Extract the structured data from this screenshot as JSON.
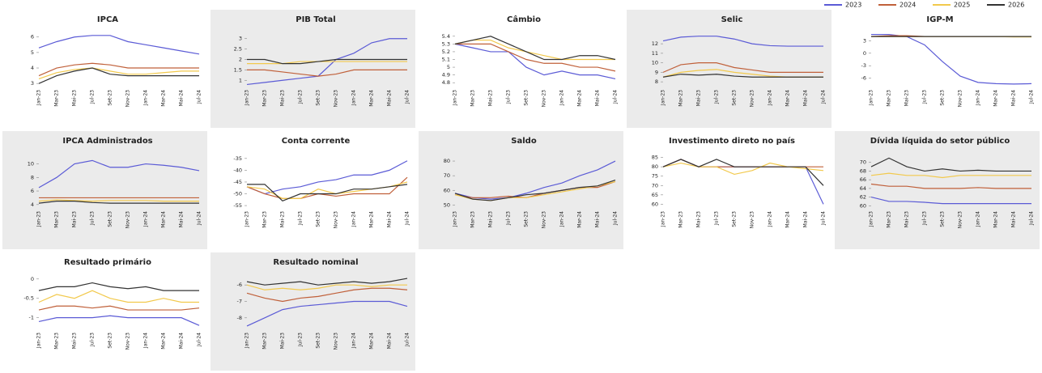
{
  "legend": [
    {
      "name": "2023",
      "color": "#5b5bd6"
    },
    {
      "name": "2024",
      "color": "#c0603a"
    },
    {
      "name": "2025",
      "color": "#f2c94c"
    },
    {
      "name": "2026",
      "color": "#333333"
    }
  ],
  "chart_data": [
    {
      "type": "line",
      "title": "IPCA",
      "categories": [
        "Jan-23",
        "Mar-23",
        "Mai-23",
        "Jul-23",
        "Set-23",
        "Nov-23",
        "Jan-24",
        "Mar-24",
        "Mai-24",
        "Jul-24"
      ],
      "ylim": [
        2.8,
        6.3
      ],
      "yticks": [
        3,
        4,
        5,
        6
      ],
      "series": [
        {
          "values": [
            5.3,
            5.7,
            6.0,
            6.1,
            6.1,
            5.7,
            5.5,
            5.3,
            5.1,
            4.9
          ]
        },
        {
          "values": [
            3.5,
            4.0,
            4.2,
            4.3,
            4.2,
            4.0,
            4.0,
            4.0,
            4.0,
            4.0
          ]
        },
        {
          "values": [
            3.3,
            3.7,
            3.9,
            4.0,
            3.8,
            3.6,
            3.6,
            3.7,
            3.8,
            3.8
          ]
        },
        {
          "values": [
            3.0,
            3.5,
            3.8,
            4.0,
            3.6,
            3.5,
            3.5,
            3.5,
            3.5,
            3.5
          ]
        }
      ]
    },
    {
      "type": "line",
      "title": "PIB Total",
      "categories": [
        "Jan-23",
        "Mar-23",
        "Mai-23",
        "Jul-23",
        "Set-23",
        "Nov-23",
        "Jan-24",
        "Mar-24",
        "Mai-24",
        "Jul-24"
      ],
      "ylim": [
        0.7,
        3.3
      ],
      "yticks": [
        1,
        1.5,
        2,
        2.5,
        3
      ],
      "series": [
        {
          "values": [
            0.8,
            0.9,
            1.0,
            1.1,
            1.2,
            2.0,
            2.3,
            2.8,
            3.0,
            3.0
          ]
        },
        {
          "values": [
            1.5,
            1.5,
            1.4,
            1.3,
            1.2,
            1.3,
            1.5,
            1.5,
            1.5,
            1.5
          ]
        },
        {
          "values": [
            1.8,
            1.8,
            1.8,
            1.9,
            1.9,
            1.9,
            1.9,
            1.9,
            1.9,
            1.9
          ]
        },
        {
          "values": [
            2.0,
            2.0,
            1.8,
            1.8,
            1.9,
            2.0,
            2.0,
            2.0,
            2.0,
            2.0
          ]
        }
      ]
    },
    {
      "type": "line",
      "title": "Câmbio",
      "categories": [
        "Jan-23",
        "Mar-23",
        "Mai-23",
        "Jul-23",
        "Set-23",
        "Nov-23",
        "Jan-24",
        "Mar-24",
        "Mai-24",
        "Jul-24"
      ],
      "ylim": [
        4.75,
        5.45
      ],
      "yticks": [
        4.8,
        4.9,
        5,
        5.1,
        5.2,
        5.3,
        5.4
      ],
      "series": [
        {
          "values": [
            5.3,
            5.25,
            5.2,
            5.2,
            5.0,
            4.9,
            4.95,
            4.9,
            4.9,
            4.85
          ]
        },
        {
          "values": [
            5.3,
            5.3,
            5.3,
            5.2,
            5.1,
            5.05,
            5.05,
            5.0,
            5.0,
            4.95
          ]
        },
        {
          "values": [
            5.3,
            5.35,
            5.35,
            5.25,
            5.2,
            5.15,
            5.1,
            5.1,
            5.1,
            5.1
          ]
        },
        {
          "values": [
            5.3,
            5.35,
            5.4,
            5.3,
            5.2,
            5.1,
            5.1,
            5.15,
            5.15,
            5.1
          ]
        }
      ]
    },
    {
      "type": "line",
      "title": "Selic",
      "categories": [
        "Jan-23",
        "Mar-23",
        "Mai-23",
        "Jul-23",
        "Set-23",
        "Nov-23",
        "Jan-24",
        "Mar-24",
        "Mai-24",
        "Jul-24"
      ],
      "ylim": [
        7.5,
        13.2
      ],
      "yticks": [
        8,
        9,
        10,
        11,
        12
      ],
      "series": [
        {
          "values": [
            12.3,
            12.7,
            12.8,
            12.8,
            12.5,
            12.0,
            11.8,
            11.75,
            11.75,
            11.75
          ]
        },
        {
          "values": [
            9,
            9.8,
            10,
            10,
            9.5,
            9.25,
            9.0,
            9.0,
            9.0,
            9.0
          ]
        },
        {
          "values": [
            8.5,
            9.0,
            9.2,
            9.3,
            9.0,
            8.8,
            8.6,
            8.5,
            8.5,
            8.5
          ]
        },
        {
          "values": [
            8.5,
            8.8,
            8.7,
            8.8,
            8.6,
            8.5,
            8.5,
            8.5,
            8.5,
            8.5
          ]
        }
      ]
    },
    {
      "type": "line",
      "title": "IGP-M",
      "categories": [
        "Jan-23",
        "Mar-23",
        "Mai-23",
        "Jul-23",
        "Set-23",
        "Nov-23",
        "Jan-24",
        "Mar-24",
        "Mai-24",
        "Jul-24"
      ],
      "ylim": [
        -8,
        5
      ],
      "yticks": [
        -6,
        -3,
        0,
        3
      ],
      "series": [
        {
          "values": [
            4.5,
            4.5,
            4.0,
            2.0,
            -2.0,
            -5.5,
            -7,
            -7.3,
            -7.4,
            -7.3
          ]
        },
        {
          "values": [
            4.0,
            4.2,
            4.2,
            4.0,
            4.0,
            4.0,
            4.0,
            4.0,
            4.0,
            4.0
          ]
        },
        {
          "values": [
            4.0,
            4.0,
            4.0,
            4.0,
            4.0,
            4.0,
            4.0,
            4.0,
            3.9,
            3.9
          ]
        },
        {
          "values": [
            4.0,
            4.0,
            4.0,
            4.0,
            4.0,
            4.0,
            4.0,
            4.0,
            4.0,
            4.0
          ]
        }
      ]
    },
    {
      "type": "line",
      "title": "IPCA Administrados",
      "categories": [
        "Jan-23",
        "Mar-23",
        "Mai-23",
        "Jul-23",
        "Set-23",
        "Nov-23",
        "Jan-24",
        "Mar-24",
        "Mai-24",
        "Jul-24"
      ],
      "ylim": [
        3.5,
        11.5
      ],
      "yticks": [
        4,
        6,
        8,
        10
      ],
      "series": [
        {
          "values": [
            6.5,
            8.0,
            10.0,
            10.5,
            9.5,
            9.5,
            10.0,
            9.8,
            9.5,
            9.0
          ]
        },
        {
          "values": [
            5.0,
            5.0,
            5.0,
            5.0,
            5.0,
            5.0,
            5.0,
            5.0,
            5.0,
            5.0
          ]
        },
        {
          "values": [
            4.5,
            4.7,
            4.6,
            4.5,
            4.6,
            4.6,
            4.6,
            4.5,
            4.5,
            4.5
          ]
        },
        {
          "values": [
            4.2,
            4.5,
            4.5,
            4.3,
            4.2,
            4.2,
            4.2,
            4.2,
            4.2,
            4.2
          ]
        }
      ]
    },
    {
      "type": "line",
      "title": "Conta corrente",
      "categories": [
        "Jan-23",
        "Mar-23",
        "Mai-23",
        "Jul-23",
        "Set-23",
        "Nov-23",
        "Jan-24",
        "Mar-24",
        "Mai-24",
        "Jul-24"
      ],
      "ylim": [
        -56,
        -33
      ],
      "yticks": [
        -55,
        -50,
        -45,
        -40,
        -35
      ],
      "series": [
        {
          "values": [
            -47,
            -50,
            -48,
            -47,
            -45,
            -44,
            -42,
            -42,
            -40,
            -36
          ]
        },
        {
          "values": [
            -47,
            -50,
            -52,
            -52,
            -50,
            -51,
            -50,
            -50,
            -50,
            -43
          ]
        },
        {
          "values": [
            -47,
            -48,
            -52,
            -52,
            -48,
            -50,
            -49,
            -48,
            -47,
            -45
          ]
        },
        {
          "values": [
            -46,
            -46,
            -53,
            -50,
            -50,
            -50,
            -48,
            -48,
            -47,
            -46
          ]
        }
      ]
    },
    {
      "type": "line",
      "title": "Saldo",
      "categories": [
        "Jan-23",
        "Mar-23",
        "Mai-23",
        "Jul-23",
        "Set-23",
        "Nov-23",
        "Jan-24",
        "Mar-24",
        "Mai-24",
        "Jul-24"
      ],
      "ylim": [
        48,
        85
      ],
      "yticks": [
        50,
        60,
        70,
        80
      ],
      "series": [
        {
          "values": [
            58,
            55,
            54,
            55,
            58,
            62,
            65,
            70,
            74,
            80
          ]
        },
        {
          "values": [
            57,
            55,
            55,
            56,
            55,
            58,
            60,
            62,
            62,
            66
          ]
        },
        {
          "values": [
            57,
            54,
            53,
            55,
            55,
            57,
            59,
            61,
            63,
            66
          ]
        },
        {
          "values": [
            58,
            54,
            53,
            55,
            57,
            58,
            60,
            62,
            63,
            67
          ]
        }
      ]
    },
    {
      "type": "line",
      "title": "Investimento direto no país",
      "categories": [
        "Jan-23",
        "Mar-23",
        "Mai-23",
        "Jul-23",
        "Set-23",
        "Nov-23",
        "Jan-24",
        "Mar-24",
        "Mai-24",
        "Jul-24"
      ],
      "ylim": [
        58,
        87
      ],
      "yticks": [
        60,
        65,
        70,
        75,
        80,
        85
      ],
      "series": [
        {
          "values": [
            80,
            84,
            80,
            80,
            80,
            80,
            80,
            80,
            80,
            60
          ]
        },
        {
          "values": [
            80,
            84,
            80,
            80,
            80,
            80,
            80,
            80,
            80,
            80
          ]
        },
        {
          "values": [
            80,
            82,
            80,
            80,
            76,
            78,
            82,
            80,
            79,
            78
          ]
        },
        {
          "values": [
            80,
            84,
            80,
            84,
            80,
            80,
            80,
            80,
            80,
            70
          ]
        }
      ]
    },
    {
      "type": "line",
      "title": "Dívida líquida do setor público",
      "categories": [
        "Jan-23",
        "Mar-23",
        "Mai-23",
        "Jul-23",
        "Set-23",
        "Nov-23",
        "Jan-24",
        "Mar-24",
        "Mai-24",
        "Jul-24"
      ],
      "ylim": [
        59.5,
        72
      ],
      "yticks": [
        60,
        62,
        64,
        66,
        68,
        70
      ],
      "series": [
        {
          "values": [
            62,
            61,
            61,
            60.8,
            60.5,
            60.5,
            60.5,
            60.5,
            60.5,
            60.5
          ]
        },
        {
          "values": [
            65,
            64.5,
            64.5,
            64,
            64,
            64,
            64.2,
            64,
            64,
            64
          ]
        },
        {
          "values": [
            67,
            67.5,
            67,
            67,
            66.5,
            67,
            67,
            67,
            67,
            67
          ]
        },
        {
          "values": [
            69,
            71,
            69,
            68,
            68.5,
            68,
            68.2,
            68,
            68,
            68
          ]
        }
      ]
    },
    {
      "type": "line",
      "title": "Resultado primário",
      "categories": [
        "Jan-23",
        "Mar-23",
        "Mai-23",
        "Jul-23",
        "Set-23",
        "Nov-23",
        "Jan-24",
        "Mar-24",
        "Mai-24",
        "Jul-24"
      ],
      "ylim": [
        -1.3,
        0.1
      ],
      "yticks": [
        -1,
        -0.5,
        0
      ],
      "series": [
        {
          "values": [
            -1.1,
            -1.0,
            -1.0,
            -1.0,
            -0.95,
            -1.0,
            -1.0,
            -1.0,
            -1.0,
            -1.2
          ]
        },
        {
          "values": [
            -0.8,
            -0.7,
            -0.7,
            -0.75,
            -0.7,
            -0.8,
            -0.8,
            -0.8,
            -0.8,
            -0.75
          ]
        },
        {
          "values": [
            -0.6,
            -0.4,
            -0.5,
            -0.3,
            -0.5,
            -0.6,
            -0.6,
            -0.5,
            -0.6,
            -0.6
          ]
        },
        {
          "values": [
            -0.3,
            -0.2,
            -0.2,
            -0.1,
            -0.2,
            -0.25,
            -0.2,
            -0.3,
            -0.3,
            -0.3
          ]
        }
      ]
    },
    {
      "type": "line",
      "title": "Resultado nominal",
      "categories": [
        "Jan-23",
        "Mar-23",
        "Mai-23",
        "Jul-23",
        "Set-23",
        "Nov-23",
        "Jan-24",
        "Mar-24",
        "Mai-24",
        "Jul-24"
      ],
      "ylim": [
        -8.7,
        -5.4
      ],
      "yticks": [
        -8,
        -7,
        -6
      ],
      "series": [
        {
          "values": [
            -8.5,
            -8,
            -7.5,
            -7.3,
            -7.2,
            -7.1,
            -7.0,
            -7.0,
            -7.0,
            -7.3
          ]
        },
        {
          "values": [
            -6.5,
            -6.8,
            -7.0,
            -6.8,
            -6.7,
            -6.5,
            -6.3,
            -6.2,
            -6.2,
            -6.3
          ]
        },
        {
          "values": [
            -6.0,
            -6.3,
            -6.2,
            -6.3,
            -6.2,
            -6.0,
            -6.0,
            -6.1,
            -6.0,
            -6.0
          ]
        },
        {
          "values": [
            -5.8,
            -6.0,
            -5.9,
            -5.8,
            -6.0,
            -5.9,
            -5.8,
            -5.9,
            -5.8,
            -5.6
          ]
        }
      ]
    }
  ]
}
